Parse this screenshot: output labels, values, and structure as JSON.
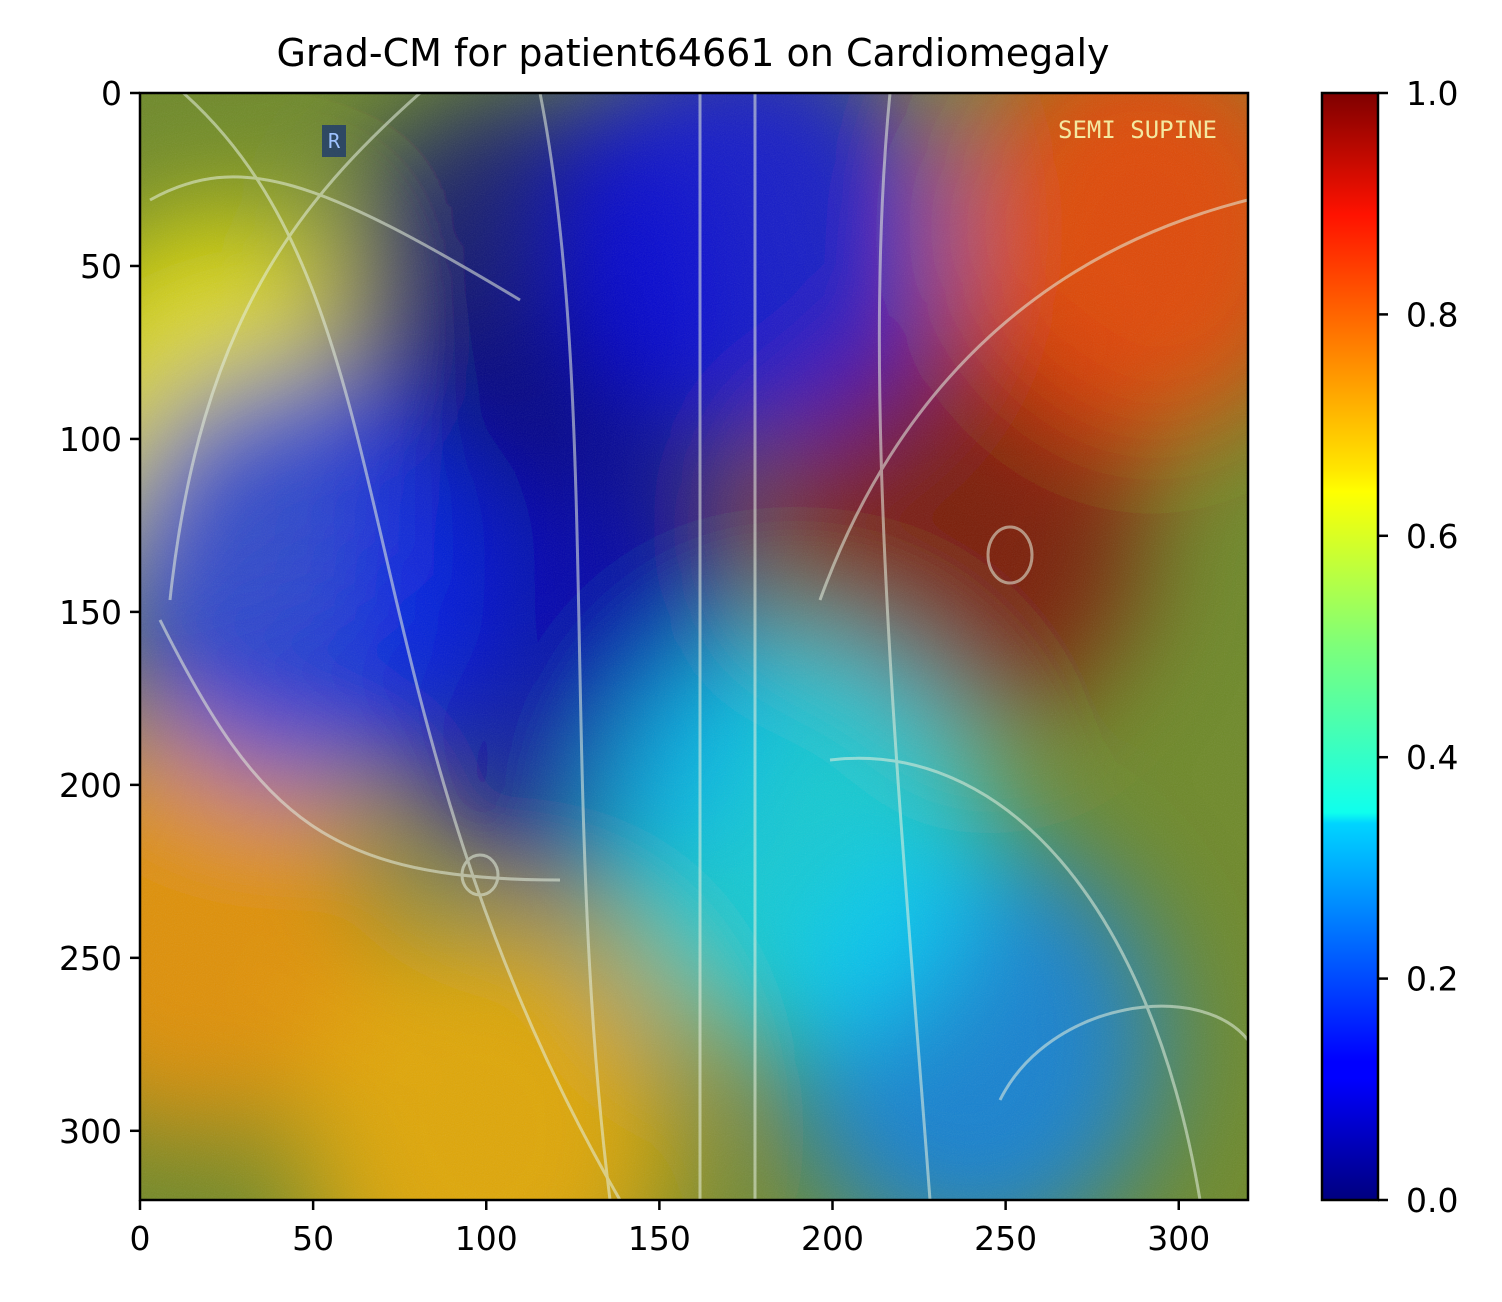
{
  "chart_data": {
    "type": "heatmap",
    "title": "Grad-CM for patient64661 on Cardiomegaly",
    "xlabel": "",
    "ylabel": "",
    "xlim": [
      0,
      320
    ],
    "ylim": [
      320,
      0
    ],
    "xticks": [
      0,
      50,
      100,
      150,
      200,
      250,
      300
    ],
    "yticks": [
      0,
      50,
      100,
      150,
      200,
      250,
      300
    ],
    "colorbar": {
      "colormap": "jet",
      "range": [
        0.0,
        1.0
      ],
      "ticks": [
        "0.0",
        "0.2",
        "0.4",
        "0.6",
        "0.8",
        "1.0"
      ]
    },
    "image_overlay_text": {
      "marker": "R",
      "position_label": "SEMI SUPINE"
    },
    "activation_blobs": [
      {
        "x": 235,
        "y": 125,
        "value": 1.0
      },
      {
        "x": 290,
        "y": 40,
        "value": 0.85
      },
      {
        "x": 15,
        "y": 240,
        "value": 0.75
      },
      {
        "x": 100,
        "y": 300,
        "value": 0.72
      },
      {
        "x": 25,
        "y": 95,
        "value": 0.65
      },
      {
        "x": 110,
        "y": 60,
        "value": 0.0
      },
      {
        "x": 115,
        "y": 120,
        "value": 0.0
      },
      {
        "x": 125,
        "y": 170,
        "value": 0.05
      },
      {
        "x": 175,
        "y": 40,
        "value": 0.1
      },
      {
        "x": 45,
        "y": 140,
        "value": 0.15
      },
      {
        "x": 240,
        "y": 275,
        "value": 0.25
      },
      {
        "x": 190,
        "y": 215,
        "value": 0.35
      }
    ]
  }
}
